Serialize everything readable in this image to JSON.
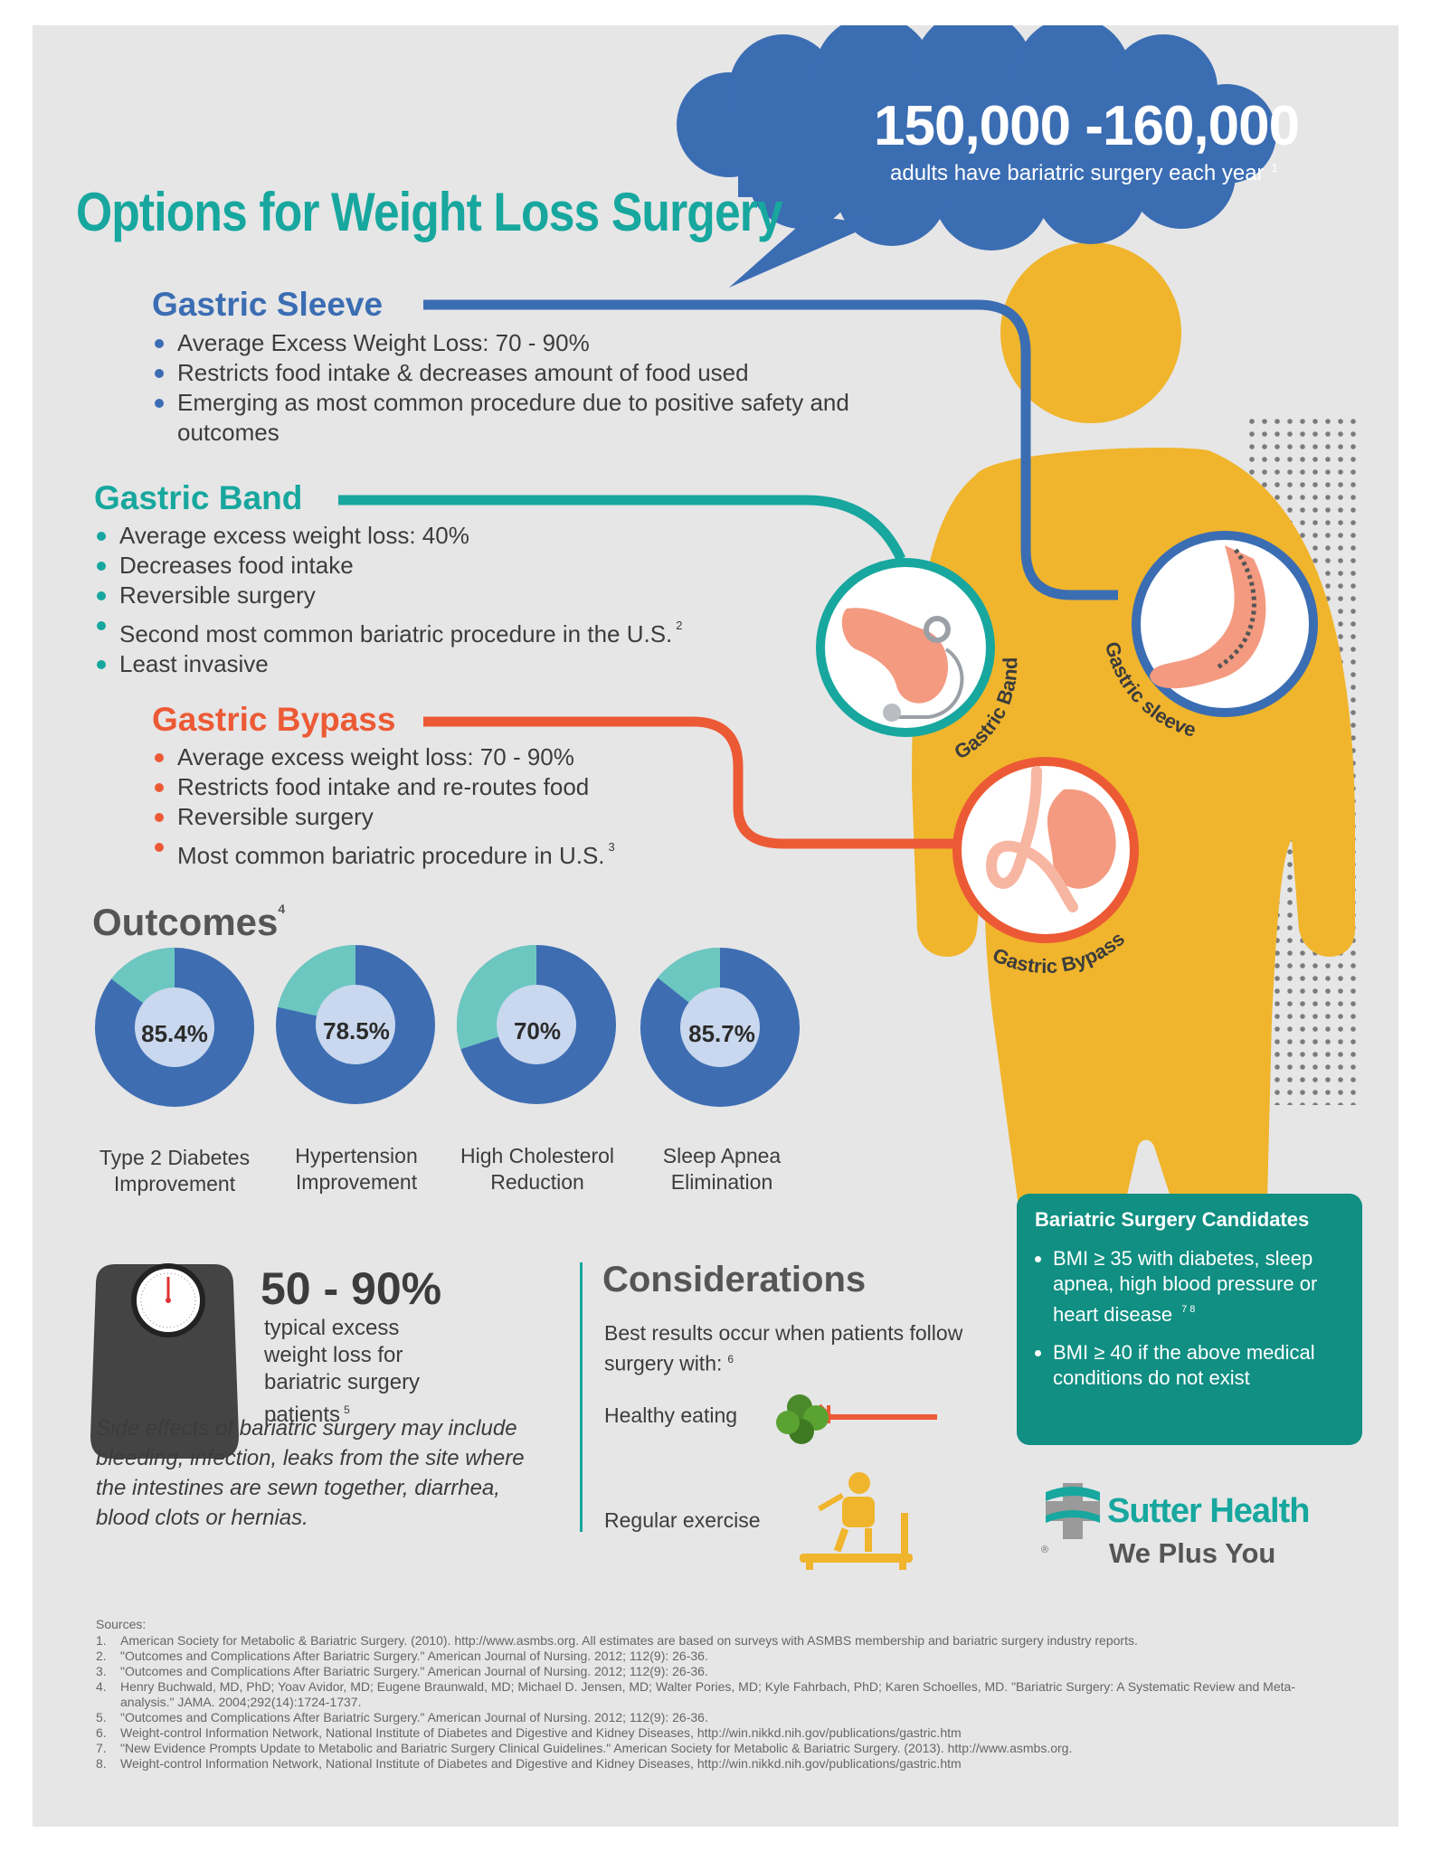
{
  "header": {
    "title": "Options for Weight Loss Surgery",
    "stat_number": "150,000 -160,000",
    "stat_text": "adults have bariatric surgery each year",
    "stat_ref": "1"
  },
  "procedures": {
    "sleeve": {
      "title": "Gastric Sleeve",
      "color": "#3b6db3",
      "label": "Gastric sleeve",
      "bullets": [
        "Average Excess Weight Loss: 70 - 90%",
        "Restricts food intake & decreases amount of food used",
        "Emerging as most common procedure due to positive safety and outcomes"
      ]
    },
    "band": {
      "title": "Gastric Band",
      "color": "#17a79e",
      "label": "Gastric Band",
      "bullets": [
        "Average excess weight loss: 40%",
        "Decreases food intake",
        "Reversible surgery",
        "Second most common bariatric procedure in the U.S.",
        "Least invasive"
      ],
      "ref": "2"
    },
    "bypass": {
      "title": "Gastric Bypass",
      "color": "#ec5a35",
      "label": "Gastric Bypass",
      "bullets": [
        "Average excess weight loss: 70 - 90%",
        "Restricts food intake and re-routes food",
        "Reversible surgery",
        "Most common bariatric procedure in U.S."
      ],
      "ref": "3"
    }
  },
  "outcomes": {
    "title": "Outcomes",
    "ref": "4",
    "items": [
      {
        "value_label": "85.4%",
        "value": 85.4,
        "line1": "Type 2 Diabetes",
        "line2": "Improvement"
      },
      {
        "value_label": "78.5%",
        "value": 78.5,
        "line1": "Hypertension",
        "line2": "Improvement"
      },
      {
        "value_label": "70%",
        "value": 70,
        "line1": "High Cholesterol",
        "line2": "Reduction"
      },
      {
        "value_label": "85.7%",
        "value": 85.7,
        "line1": "Sleep Apnea",
        "line2": "Elimination"
      }
    ]
  },
  "weight_loss": {
    "pct": "50 - 90%",
    "desc": "typical excess weight loss for bariatric surgery patients",
    "ref": "5",
    "side_effects": "Side effects of bariatric surgery may include bleeding, infection, leaks from the site where the intestines are sewn together, diarrhea, blood clots or hernias."
  },
  "considerations": {
    "title": "Considerations",
    "text": "Best results occur when patients follow surgery with:",
    "ref": "6",
    "items": [
      "Healthy eating",
      "Regular exercise"
    ]
  },
  "candidates": {
    "title": "Bariatric Surgery Candidates",
    "items": [
      {
        "text": "BMI ≥ 35 with diabetes, sleep apnea, high blood pressure or heart disease",
        "ref": "7  8"
      },
      {
        "text": "BMI ≥ 40 if the above medical conditions do not exist",
        "ref": ""
      }
    ]
  },
  "brand": {
    "name": "Sutter Health",
    "tagline": "We Plus You",
    "registered": "®"
  },
  "sources": {
    "heading": "Sources:",
    "items": [
      "American Society for Metabolic & Bariatric Surgery. (2010). http://www.asmbs.org. All estimates are based on surveys with ASMBS membership and bariatric surgery industry reports.",
      "\"Outcomes and Complications After Bariatric Surgery.\" American Journal of Nursing.  2012; 112(9): 26-36.",
      "\"Outcomes and Complications After Bariatric Surgery.\" American Journal of Nursing.  2012; 112(9): 26-36.",
      "Henry Buchwald, MD, PhD; Yoav Avidor, MD; Eugene Braunwald, MD; Michael D. Jensen, MD; Walter Pories, MD; Kyle Fahrbach, PhD; Karen Schoelles, MD. \"Bariatric Surgery: A Systematic Review and Meta-analysis.\" JAMA. 2004;292(14):1724-1737.",
      "\"Outcomes and Complications After Bariatric Surgery.\" American Journal of Nursing.  2012; 112(9): 26-36.",
      "Weight-control Information Network, National Institute of Diabetes and Digestive and Kidney Diseases, http://win.nikkd.nih.gov/publications/gastric.htm",
      "\"New Evidence Prompts Update to Metabolic and Bariatric Surgery Clinical Guidelines.\" American Society for Metabolic & Bariatric Surgery. (2013). http://www.asmbs.org.",
      "Weight-control Information Network, National Institute of Diabetes and Digestive and Kidney Diseases, http://win.nikkd.nih.gov/publications/gastric.htm"
    ]
  },
  "colors": {
    "blue": "#3b6db3",
    "teal": "#17a79e",
    "orange": "#ec5a35",
    "body": "#f0b52d",
    "donut_bg": "#3e6db2",
    "donut_rest": "#6cc7c0",
    "donut_center": "#c9d8ee"
  }
}
